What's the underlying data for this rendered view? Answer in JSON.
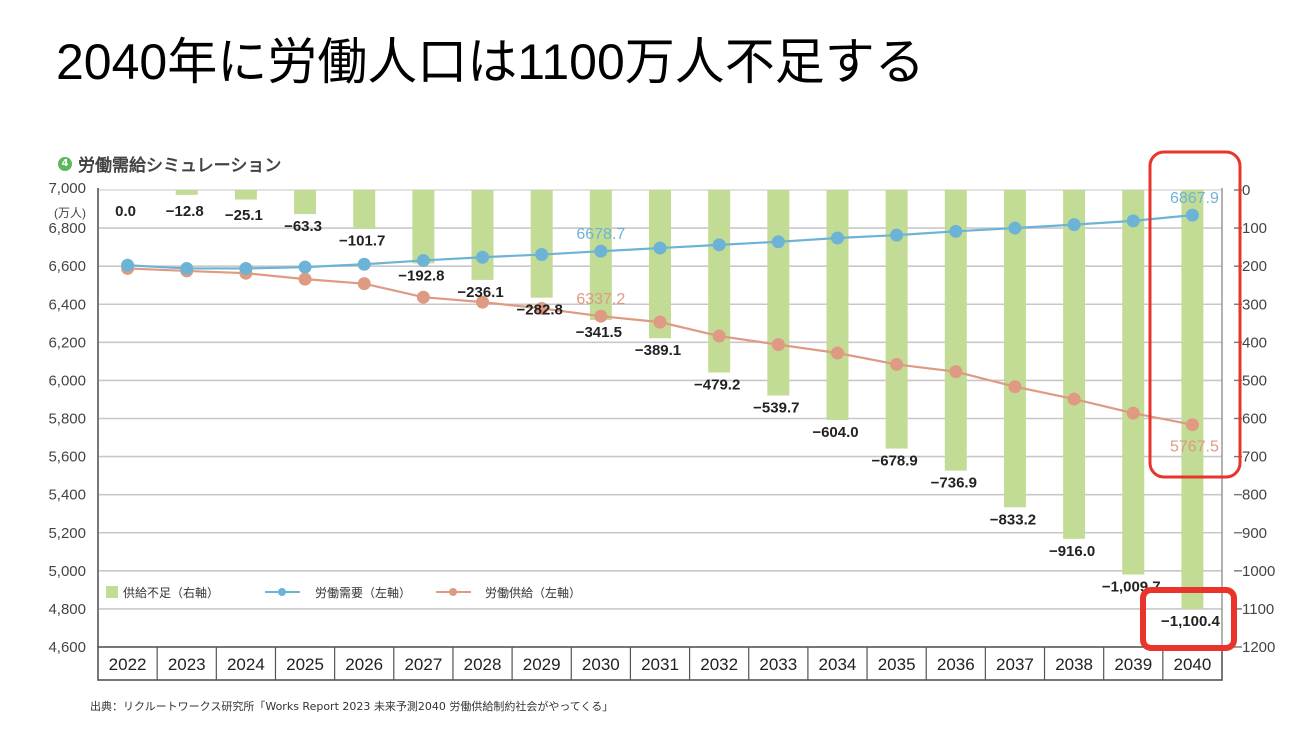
{
  "slide": {
    "title": "2040年に労働人口は1100万人不足する"
  },
  "chart_heading": {
    "number": "4",
    "text": "労働需給シミュレーション"
  },
  "source_note": "出典：リクルートワークス研究所「Works Report 2023 未来予測2040 労働供給制約社会がやってくる」",
  "colors": {
    "shortage_bar": "#c3dc95",
    "demand_line": "#6db3d6",
    "supply_line": "#de9a82",
    "highlight_box": "#e8342a"
  },
  "chart_data": {
    "type": "bar+line",
    "title": "労働需給シミュレーション",
    "categories": [
      "2022",
      "2023",
      "2024",
      "2025",
      "2026",
      "2027",
      "2028",
      "2029",
      "2030",
      "2031",
      "2032",
      "2033",
      "2034",
      "2035",
      "2036",
      "2037",
      "2038",
      "2039",
      "2040"
    ],
    "left_axis": {
      "unit_label": "(万人)",
      "range": [
        4600,
        7000
      ],
      "ticks": [
        "7,000",
        "6,800",
        "6,600",
        "6,400",
        "6,200",
        "6,000",
        "5,800",
        "5,600",
        "5,400",
        "5,200",
        "5,000",
        "4,800",
        "4,600"
      ],
      "tick_values": [
        7000,
        6800,
        6600,
        6400,
        6200,
        6000,
        5800,
        5600,
        5400,
        5200,
        5000,
        4800,
        4600
      ]
    },
    "right_axis": {
      "range": [
        -1200,
        0
      ],
      "ticks": [
        "0",
        "-100",
        "-200",
        "-300",
        "-400",
        "-500",
        "-600",
        "-700",
        "-800",
        "-900",
        "-1000",
        "-1100",
        "-1200"
      ],
      "tick_values": [
        0,
        -100,
        -200,
        -300,
        -400,
        -500,
        -600,
        -700,
        -800,
        -900,
        -1000,
        -1100,
        -1200
      ]
    },
    "grid": true,
    "legend_position": "bottom-left",
    "series": [
      {
        "name": "供給不足（右軸）",
        "type": "bar",
        "axis": "right",
        "values": [
          0.0,
          -12.8,
          -25.1,
          -63.3,
          -101.7,
          -192.8,
          -236.1,
          -282.8,
          -341.5,
          -389.1,
          -479.2,
          -539.7,
          -604.0,
          -678.9,
          -736.9,
          -833.2,
          -916.0,
          -1009.7,
          -1100.4
        ],
        "labels": [
          "0.0",
          "−12.8",
          "−25.1",
          "−63.3",
          "−101.7",
          "−192.8",
          "−236.1",
          "−282.8",
          "−341.5",
          "−389.1",
          "−479.2",
          "−539.7",
          "−604.0",
          "−678.9",
          "−736.9",
          "−833.2",
          "−916.0",
          "−1,009.7",
          "−1,100.4"
        ]
      },
      {
        "name": "労働需要（左軸）",
        "type": "line",
        "axis": "left",
        "values": [
          6605,
          6588,
          6588,
          6595,
          6610,
          6630,
          6647,
          6661,
          6678.7,
          6695,
          6712,
          6728,
          6748,
          6763,
          6783,
          6800,
          6818,
          6838,
          6867.9
        ],
        "annotations": [
          {
            "index": 8,
            "text": "6678.7"
          },
          {
            "index": 18,
            "text": "6867.9"
          }
        ]
      },
      {
        "name": "労働供給（左軸）",
        "type": "line",
        "axis": "left",
        "values": [
          6588,
          6575,
          6563,
          6532,
          6508,
          6437,
          6411,
          6378,
          6337.2,
          6306,
          6233,
          6188,
          6144,
          6084,
          6046,
          5967,
          5902,
          5828,
          5767.5
        ],
        "annotations": [
          {
            "index": 8,
            "text": "6337.2"
          },
          {
            "index": 18,
            "text": "5767.5"
          }
        ]
      }
    ],
    "legend": [
      {
        "label": "供給不足（右軸）",
        "kind": "bar"
      },
      {
        "label": "労働需要（左軸）",
        "kind": "line-demand"
      },
      {
        "label": "労働供給（左軸）",
        "kind": "line-supply"
      }
    ]
  }
}
